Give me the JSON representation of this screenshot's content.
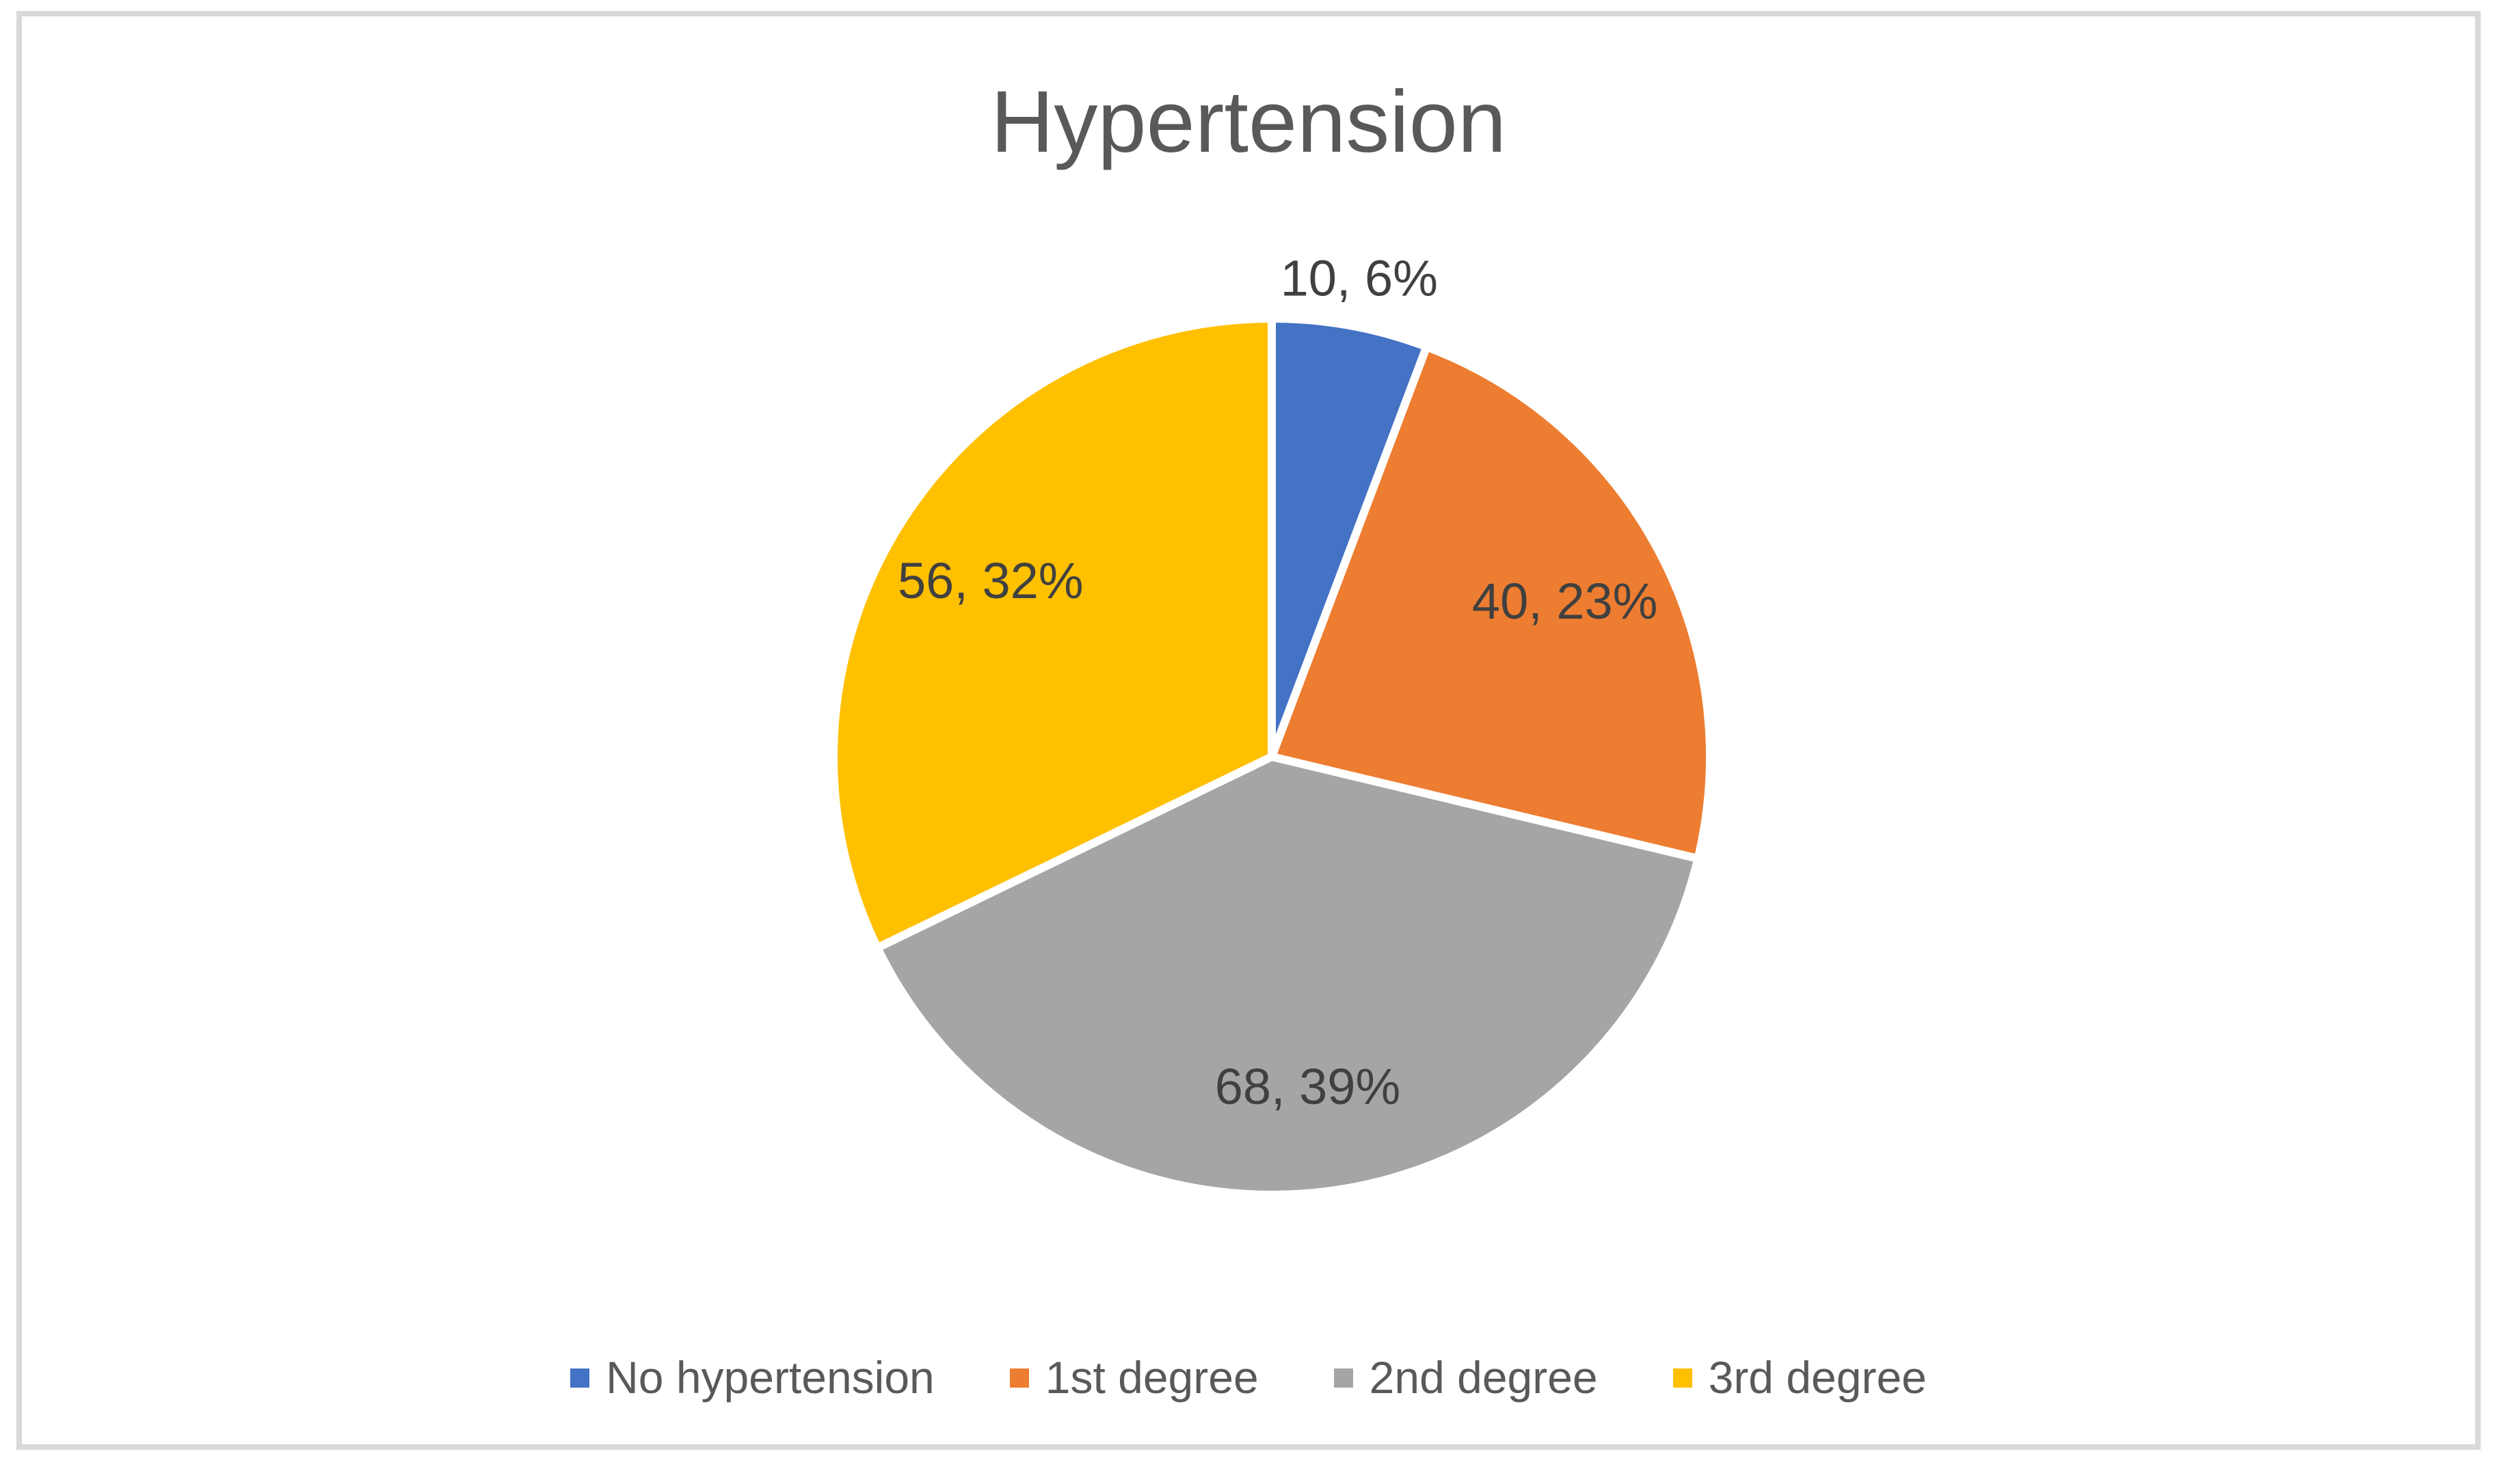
{
  "chart_data": {
    "type": "pie",
    "title": "Hypertension",
    "categories": [
      "No hypertension",
      "1st degree",
      "2nd degree",
      "3rd degree"
    ],
    "values": [
      10,
      40,
      68,
      56
    ],
    "percents": [
      6,
      23,
      39,
      32
    ],
    "data_labels": [
      "10, 6%",
      "40, 23%",
      "68, 39%",
      "56, 32%"
    ],
    "colors": [
      "#4472C4",
      "#ED7D31",
      "#A5A5A5",
      "#FFC000"
    ],
    "slice_border_color": "#FFFFFF",
    "start_angle_deg": 0,
    "direction": "clockwise",
    "legend_position": "bottom",
    "grid": "off"
  },
  "frame": {
    "border_color": "#D9D9D9",
    "background_color": "#FFFFFF"
  },
  "text_colors": {
    "title": "#595959",
    "legend": "#595959",
    "data_label": "#404040"
  }
}
